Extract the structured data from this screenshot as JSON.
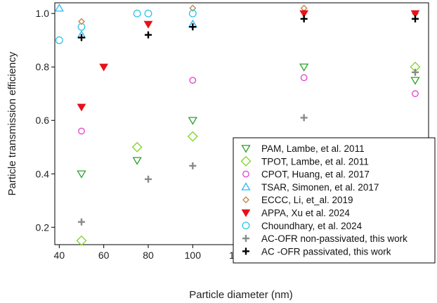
{
  "chart_data": {
    "type": "scatter",
    "xlabel": "Particle diameter (nm)",
    "ylabel": "Particle transmission efficiency",
    "xlim": [
      38,
      206
    ],
    "ylim": [
      0.135,
      1.04
    ],
    "xticks": [
      40,
      60,
      80,
      100,
      120,
      140,
      160,
      180,
      200
    ],
    "yticks": [
      0.2,
      0.4,
      0.6,
      0.8,
      1.0
    ],
    "ytick_labels": [
      "0.2",
      "0.4",
      "0.6",
      "0.8",
      "1.0"
    ],
    "grid": false,
    "legend_position": "bottom-right",
    "series": [
      {
        "name": "PAM, Lambe, et al. 2011",
        "marker": "triangle-down-open",
        "color": "#2ca02c",
        "points": [
          [
            50,
            0.4
          ],
          [
            75,
            0.45
          ],
          [
            100,
            0.6
          ],
          [
            150,
            0.8
          ],
          [
            200,
            0.75
          ]
        ]
      },
      {
        "name": "TPOT, Lambe, et al. 2011",
        "marker": "diamond-open",
        "color": "#7ed321",
        "points": [
          [
            50,
            0.15
          ],
          [
            75,
            0.5
          ],
          [
            100,
            0.54
          ],
          [
            200,
            0.8
          ]
        ]
      },
      {
        "name": "CPOT, Huang, et al. 2017",
        "marker": "circle-open",
        "color": "#e040c8",
        "points": [
          [
            50,
            0.56
          ],
          [
            100,
            0.75
          ],
          [
            150,
            0.76
          ],
          [
            200,
            0.7
          ]
        ]
      },
      {
        "name": "TSAR, Simonen, et al. 2017",
        "marker": "triangle-up-open",
        "color": "#29b6f6",
        "points": [
          [
            40,
            1.02
          ],
          [
            50,
            0.92
          ],
          [
            100,
            0.96
          ]
        ]
      },
      {
        "name": "ECCC, Li, et_al. 2019",
        "marker": "diamond-open-small",
        "color": "#c08040",
        "points": [
          [
            50,
            0.97
          ],
          [
            100,
            1.02
          ],
          [
            150,
            1.02
          ],
          [
            200,
            1.0
          ]
        ]
      },
      {
        "name": "APPA, Xu et al. 2024",
        "marker": "triangle-down-filled",
        "color": "#e8101a",
        "points": [
          [
            50,
            0.65
          ],
          [
            60,
            0.8
          ],
          [
            80,
            0.96
          ],
          [
            150,
            1.0
          ],
          [
            200,
            1.0
          ]
        ]
      },
      {
        "name": "Choundhary, et al. 2024",
        "marker": "circle-open-large",
        "color": "#2ec4e6",
        "points": [
          [
            40,
            0.9
          ],
          [
            50,
            0.95
          ],
          [
            75,
            1.0
          ],
          [
            80,
            1.0
          ],
          [
            100,
            1.0
          ]
        ]
      },
      {
        "name": "AC-OFR non-passivated, this work",
        "marker": "plus-thick",
        "color": "#8a8a8a",
        "points": [
          [
            50,
            0.22
          ],
          [
            80,
            0.38
          ],
          [
            100,
            0.43
          ],
          [
            150,
            0.61
          ],
          [
            200,
            0.78
          ]
        ]
      },
      {
        "name": "AC -OFR passivated, this work",
        "marker": "plus-thick",
        "color": "#000000",
        "points": [
          [
            50,
            0.91
          ],
          [
            80,
            0.92
          ],
          [
            100,
            0.95
          ],
          [
            150,
            0.98
          ],
          [
            200,
            0.98
          ]
        ]
      }
    ]
  }
}
